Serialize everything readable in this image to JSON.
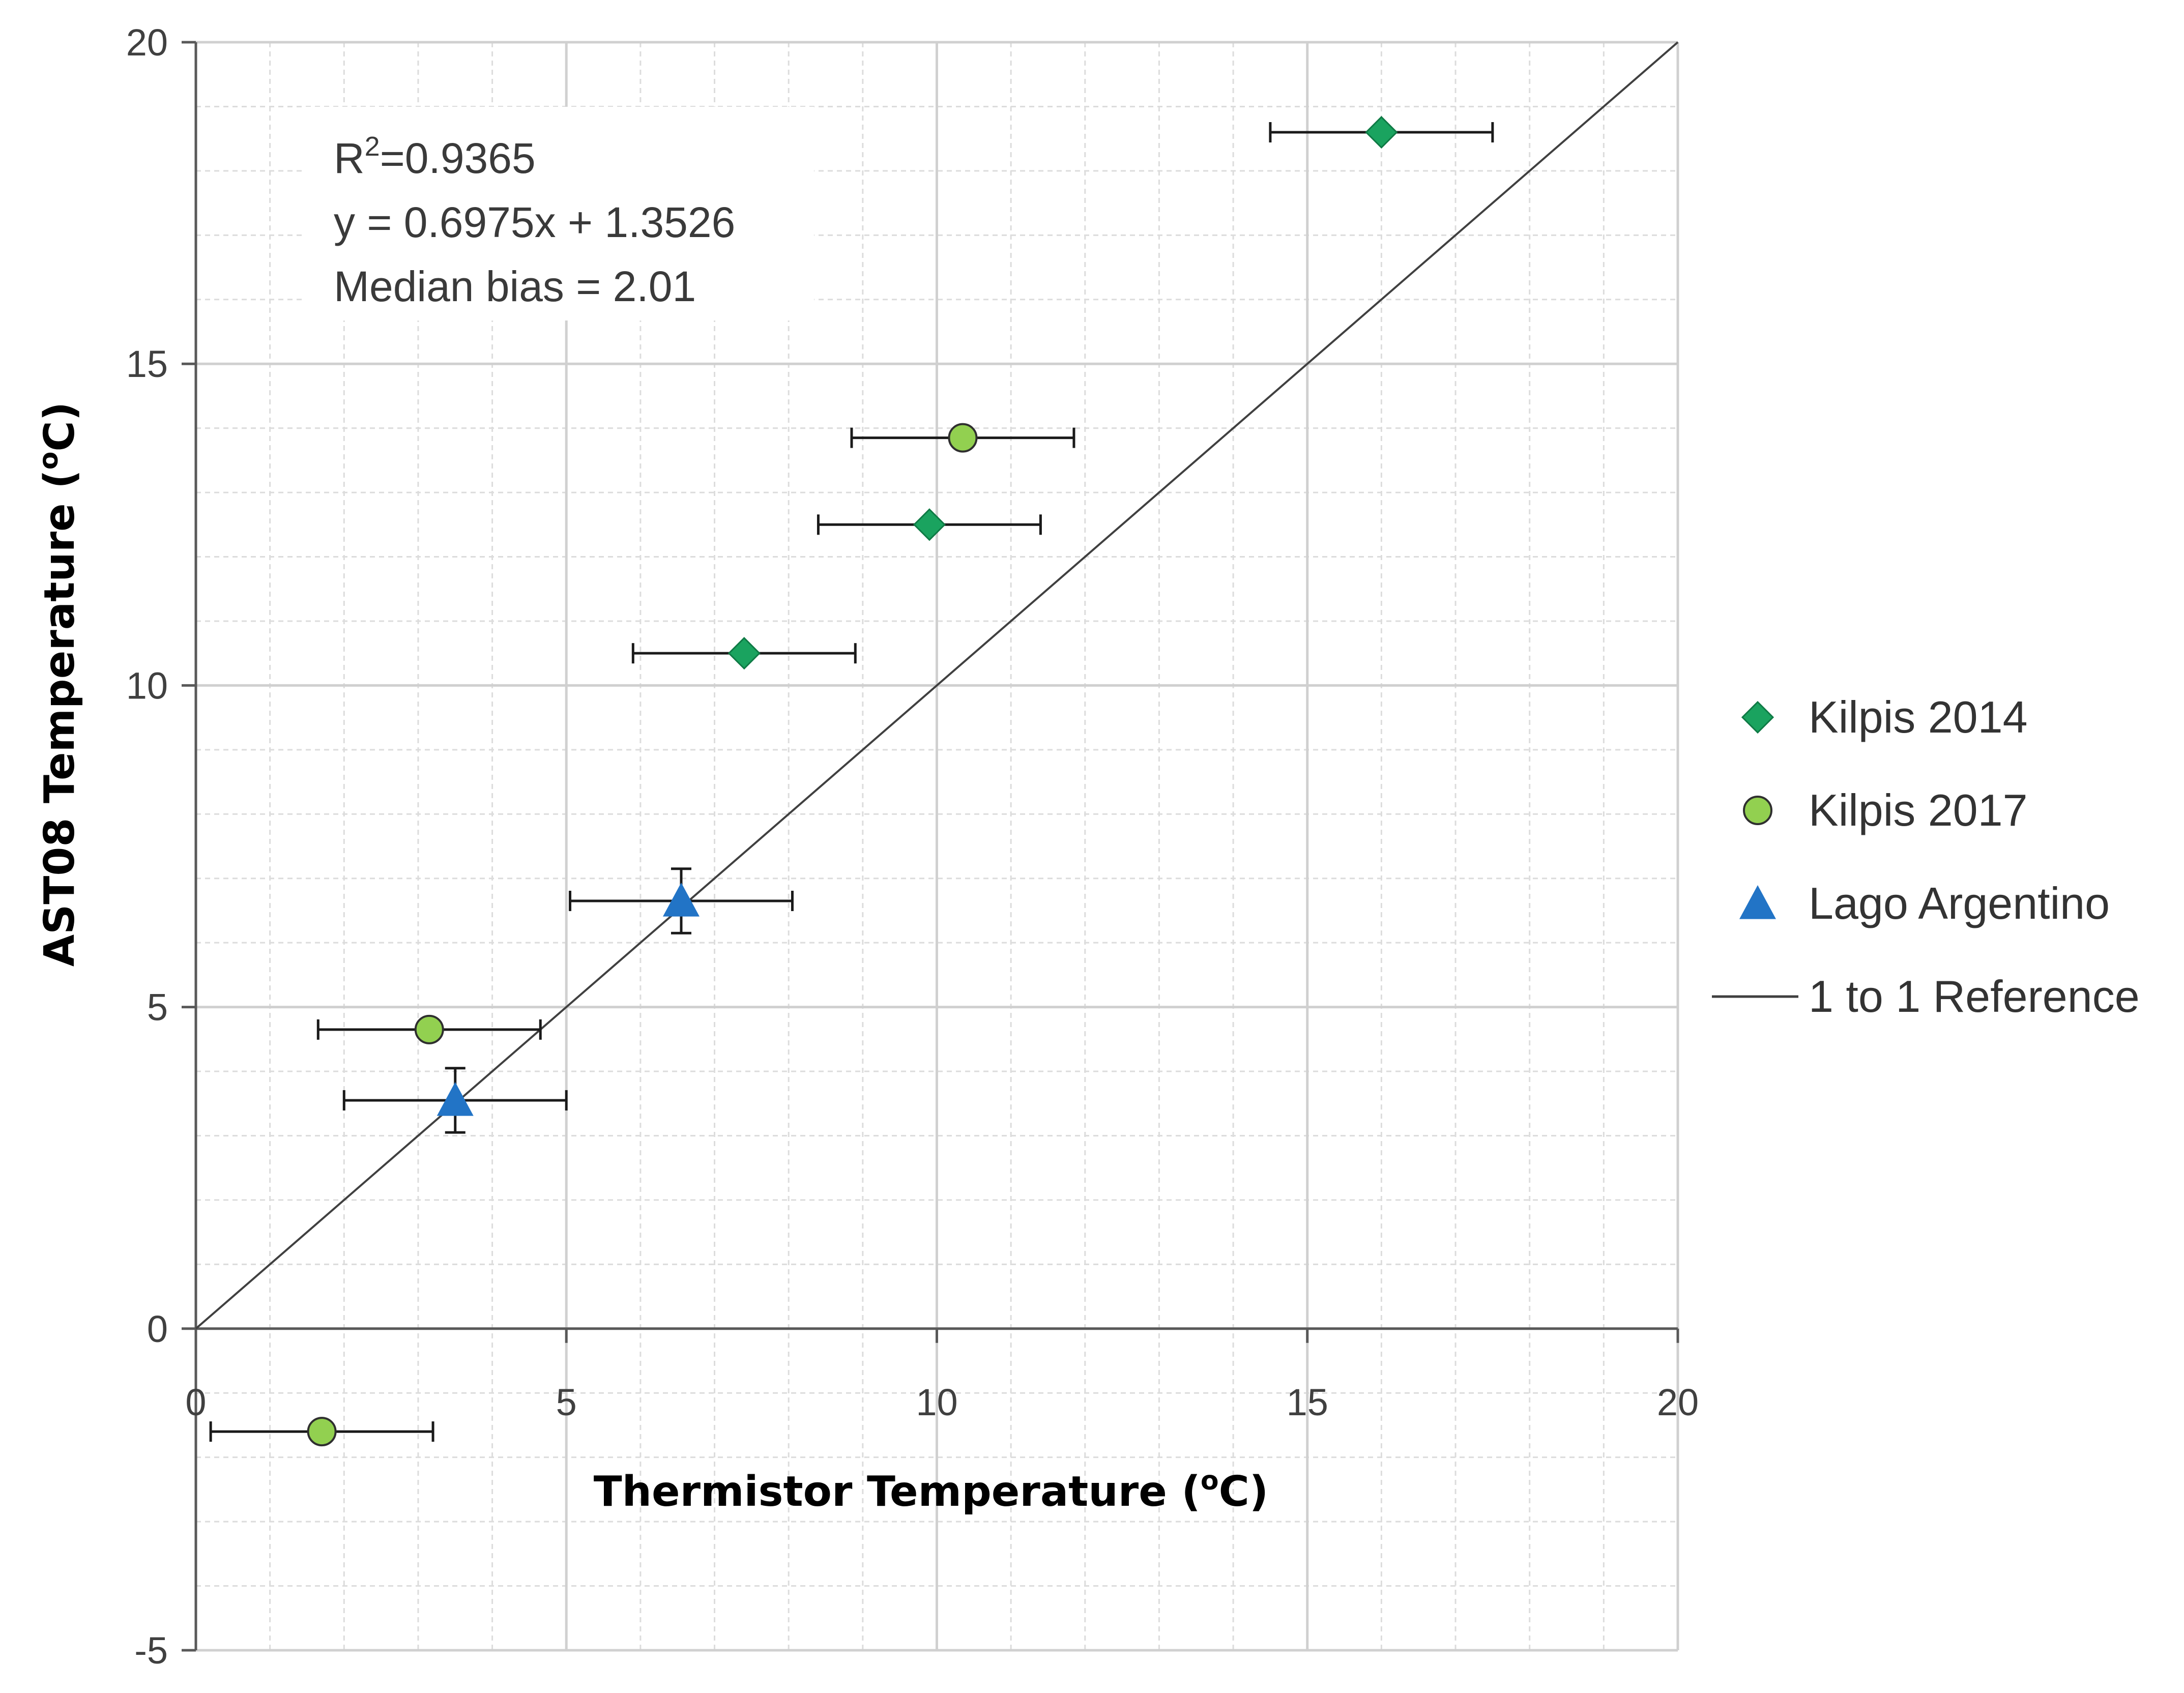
{
  "chart_data": {
    "type": "scatter",
    "xlabel": "Thermistor Temperature (",
    "xlabel_unit": "o",
    "xlabel_end": "C)",
    "ylabel": "AST08 Temperature (",
    "ylabel_unit": "o",
    "ylabel_end": "C)",
    "xlim": [
      0,
      20
    ],
    "ylim": [
      -5,
      20
    ],
    "x_ticks": [
      0,
      5,
      10,
      15,
      20
    ],
    "y_ticks": [
      -5,
      0,
      5,
      10,
      15,
      20
    ],
    "x_tick_labels": [
      "0",
      "5",
      "10",
      "15",
      "20"
    ],
    "y_tick_labels": [
      "-5",
      "0",
      "5",
      "10",
      "15",
      "20"
    ],
    "grid": true,
    "legend_position": "right",
    "annotations": {
      "r2_prefix": "R",
      "r2_sup": "2",
      "r2_value": "=0.9365",
      "equation": "y = 0.6975x + 1.3526",
      "median_bias": "Median bias = 2.01"
    },
    "series": [
      {
        "name": "Kilpis 2014",
        "marker": "diamond",
        "color": "#1aa35f",
        "points": [
          {
            "x": 16.0,
            "y": 18.6,
            "xerr": 1.5
          },
          {
            "x": 9.9,
            "y": 12.5,
            "xerr": 1.5
          },
          {
            "x": 7.4,
            "y": 10.5,
            "xerr": 1.5
          }
        ]
      },
      {
        "name": "Kilpis 2017",
        "marker": "circle",
        "color": "#92d050",
        "points": [
          {
            "x": 10.35,
            "y": 13.85,
            "xerr": 1.5
          },
          {
            "x": 3.15,
            "y": 4.65,
            "xerr": 1.5
          },
          {
            "x": 1.7,
            "y": -1.6,
            "xerr": 1.5
          }
        ]
      },
      {
        "name": "Lago Argentino",
        "marker": "triangle",
        "color": "#2274c6",
        "points": [
          {
            "x": 6.55,
            "y": 6.65,
            "xerr": 1.5,
            "yerr": 0.5
          },
          {
            "x": 3.5,
            "y": 3.55,
            "xerr": 1.5,
            "yerr": 0.5
          }
        ]
      },
      {
        "name": "1 to 1 Reference",
        "marker": "line",
        "color": "#404040",
        "points": [
          {
            "x": 0,
            "y": 0
          },
          {
            "x": 20,
            "y": 20
          }
        ]
      }
    ]
  }
}
